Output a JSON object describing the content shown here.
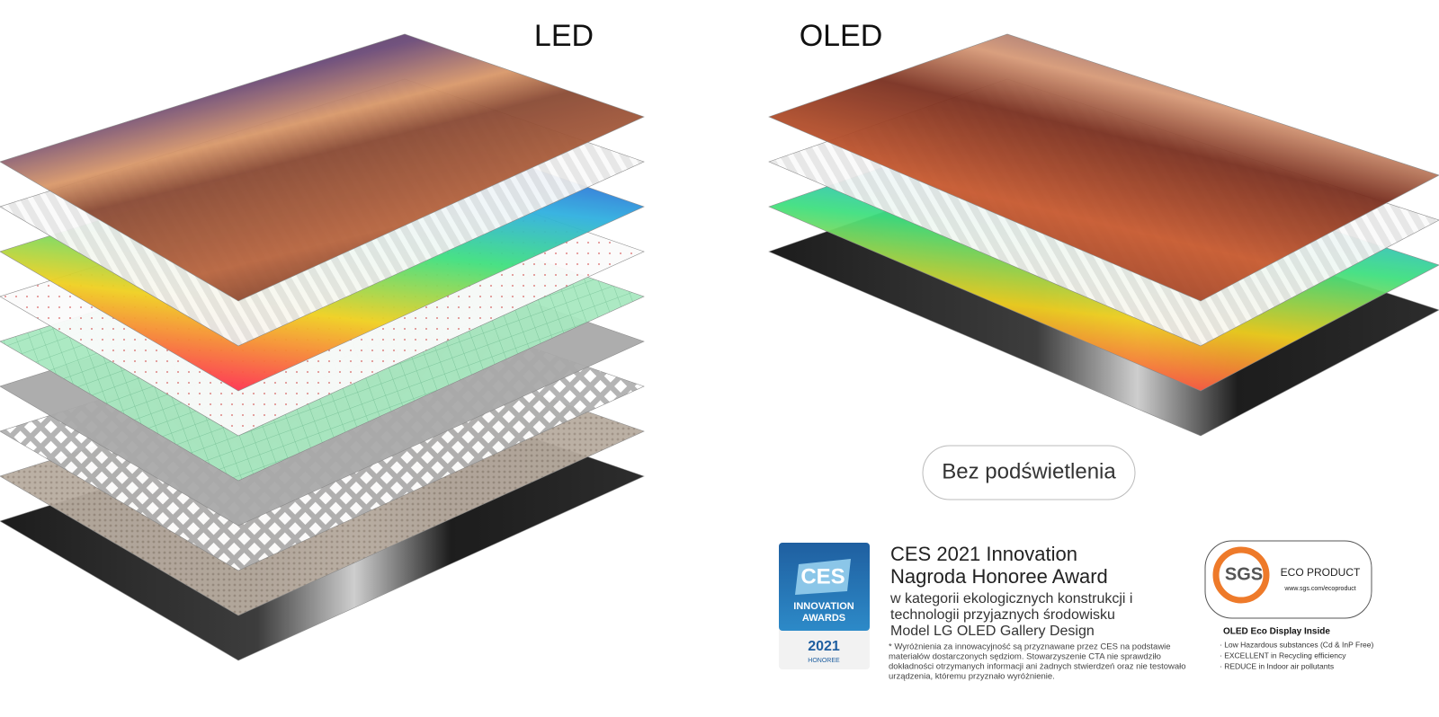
{
  "header": {
    "led_label": "LED",
    "oled_label": "OLED"
  },
  "button": {
    "label": "Bez podświetlenia"
  },
  "award": {
    "badge": {
      "logo": "CES",
      "line1": "INNOVATION",
      "line2": "AWARDS",
      "year": "2021",
      "honoree": "HONOREE"
    },
    "title_lines": [
      "CES 2021 Innovation",
      "Nagroda Honoree Award"
    ],
    "description_lines": [
      "w kategorii ekologicznych konstrukcji i",
      "technologii przyjaznych środowisku",
      "Model LG OLED Gallery Design"
    ],
    "footnote_lines": [
      "* Wyróżnienia za innowacyjność są przyznawane przez CES na podstawie",
      "materiałów dostarczonych sędziom. Stowarzyszenie CTA nie sprawdziło",
      "dokładności otrzymanych informacji ani żadnych stwierdzeń oraz nie testowało",
      "urządzenia, któremu przyznało wyróżnienie."
    ]
  },
  "eco": {
    "logo": "SGS",
    "label": "ECO PRODUCT",
    "url": "www.sgs.com/ecoproduct",
    "heading": "OLED Eco Display Inside",
    "items": [
      "· Low Hazardous substances (Cd & InP Free)",
      "· EXCELLENT in Recycling efficiency",
      "· REDUCE in Indoor air pollutants"
    ]
  }
}
